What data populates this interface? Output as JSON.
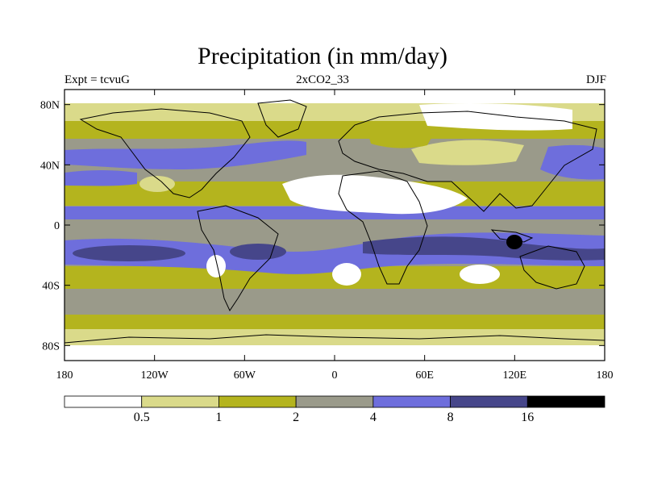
{
  "title": "Precipitation (in mm/day)",
  "subtitle_left": "Expt = tcvuG",
  "subtitle_center": "2xCO2_33",
  "subtitle_right": "DJF",
  "map": {
    "projection": "cylindrical-equidistant",
    "lon_range": [
      -180,
      180
    ],
    "lat_range": [
      -90,
      90
    ],
    "lat_ticks": [
      {
        "value": 80,
        "label": "80N"
      },
      {
        "value": 40,
        "label": "40N"
      },
      {
        "value": 0,
        "label": "0"
      },
      {
        "value": -40,
        "label": "40S"
      },
      {
        "value": -80,
        "label": "80S"
      }
    ],
    "lon_ticks": [
      {
        "value": -180,
        "label": "180"
      },
      {
        "value": -120,
        "label": "120W"
      },
      {
        "value": -60,
        "label": "60W"
      },
      {
        "value": 0,
        "label": "0"
      },
      {
        "value": 60,
        "label": "60E"
      },
      {
        "value": 120,
        "label": "120E"
      },
      {
        "value": 180,
        "label": "180"
      }
    ]
  },
  "colorbar": {
    "colors": [
      "#ffffff",
      "#dada8a",
      "#b4b41e",
      "#9a9a8a",
      "#6e6edc",
      "#46468a",
      "#000000"
    ],
    "labels": [
      "0.5",
      "1",
      "2",
      "4",
      "8",
      "16"
    ]
  }
}
